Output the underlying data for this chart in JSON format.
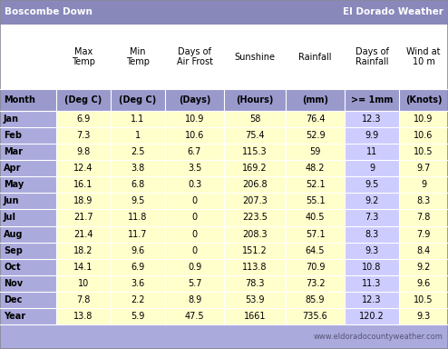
{
  "title_left": "Boscombe Down",
  "title_right": "El Dorado Weather",
  "website": "www.eldoradocountyweather.com",
  "col_headers_line1": [
    "",
    "Max\nTemp",
    "Min\nTemp",
    "Days of\nAir Frost",
    "Sunshine",
    "Rainfall",
    "Days of\nRainfall",
    "Wind at\n10 m"
  ],
  "col_headers_line2": [
    "Month",
    "(Deg C)",
    "(Deg C)",
    "(Days)",
    "(Hours)",
    "(mm)",
    ">= 1mm",
    "(Knots)"
  ],
  "rows": [
    [
      "Jan",
      "6.9",
      "1.1",
      "10.9",
      "58",
      "76.4",
      "12.3",
      "10.9"
    ],
    [
      "Feb",
      "7.3",
      "1",
      "10.6",
      "75.4",
      "52.9",
      "9.9",
      "10.6"
    ],
    [
      "Mar",
      "9.8",
      "2.5",
      "6.7",
      "115.3",
      "59",
      "11",
      "10.5"
    ],
    [
      "Apr",
      "12.4",
      "3.8",
      "3.5",
      "169.2",
      "48.2",
      "9",
      "9.7"
    ],
    [
      "May",
      "16.1",
      "6.8",
      "0.3",
      "206.8",
      "52.1",
      "9.5",
      "9"
    ],
    [
      "Jun",
      "18.9",
      "9.5",
      "0",
      "207.3",
      "55.1",
      "9.2",
      "8.3"
    ],
    [
      "Jul",
      "21.7",
      "11.8",
      "0",
      "223.5",
      "40.5",
      "7.3",
      "7.8"
    ],
    [
      "Aug",
      "21.4",
      "11.7",
      "0",
      "208.3",
      "57.1",
      "8.3",
      "7.9"
    ],
    [
      "Sep",
      "18.2",
      "9.6",
      "0",
      "151.2",
      "64.5",
      "9.3",
      "8.4"
    ],
    [
      "Oct",
      "14.1",
      "6.9",
      "0.9",
      "113.8",
      "70.9",
      "10.8",
      "9.2"
    ],
    [
      "Nov",
      "10",
      "3.6",
      "5.7",
      "78.3",
      "73.2",
      "11.3",
      "9.6"
    ],
    [
      "Dec",
      "7.8",
      "2.2",
      "8.9",
      "53.9",
      "85.9",
      "12.3",
      "10.5"
    ],
    [
      "Year",
      "13.8",
      "5.9",
      "47.5",
      "1661",
      "735.6",
      "120.2",
      "9.3"
    ]
  ],
  "title_bg": "#8888bb",
  "title_text_color": "#ffffff",
  "header1_bg": "#ffffff",
  "header2_bg": "#9999cc",
  "month_col_bg": "#aaaadd",
  "data_col_bg_yellow": "#ffffcc",
  "data_col_bg_blue": "#ccccff",
  "footer_bg": "#aaaadd",
  "footer_text_color": "#555577",
  "border_color": "#888899",
  "col_colors": [
    "month",
    "yellow",
    "yellow",
    "yellow",
    "yellow",
    "yellow",
    "blue",
    "yellow"
  ],
  "fig_width": 4.94,
  "fig_height": 3.84,
  "dpi": 100
}
